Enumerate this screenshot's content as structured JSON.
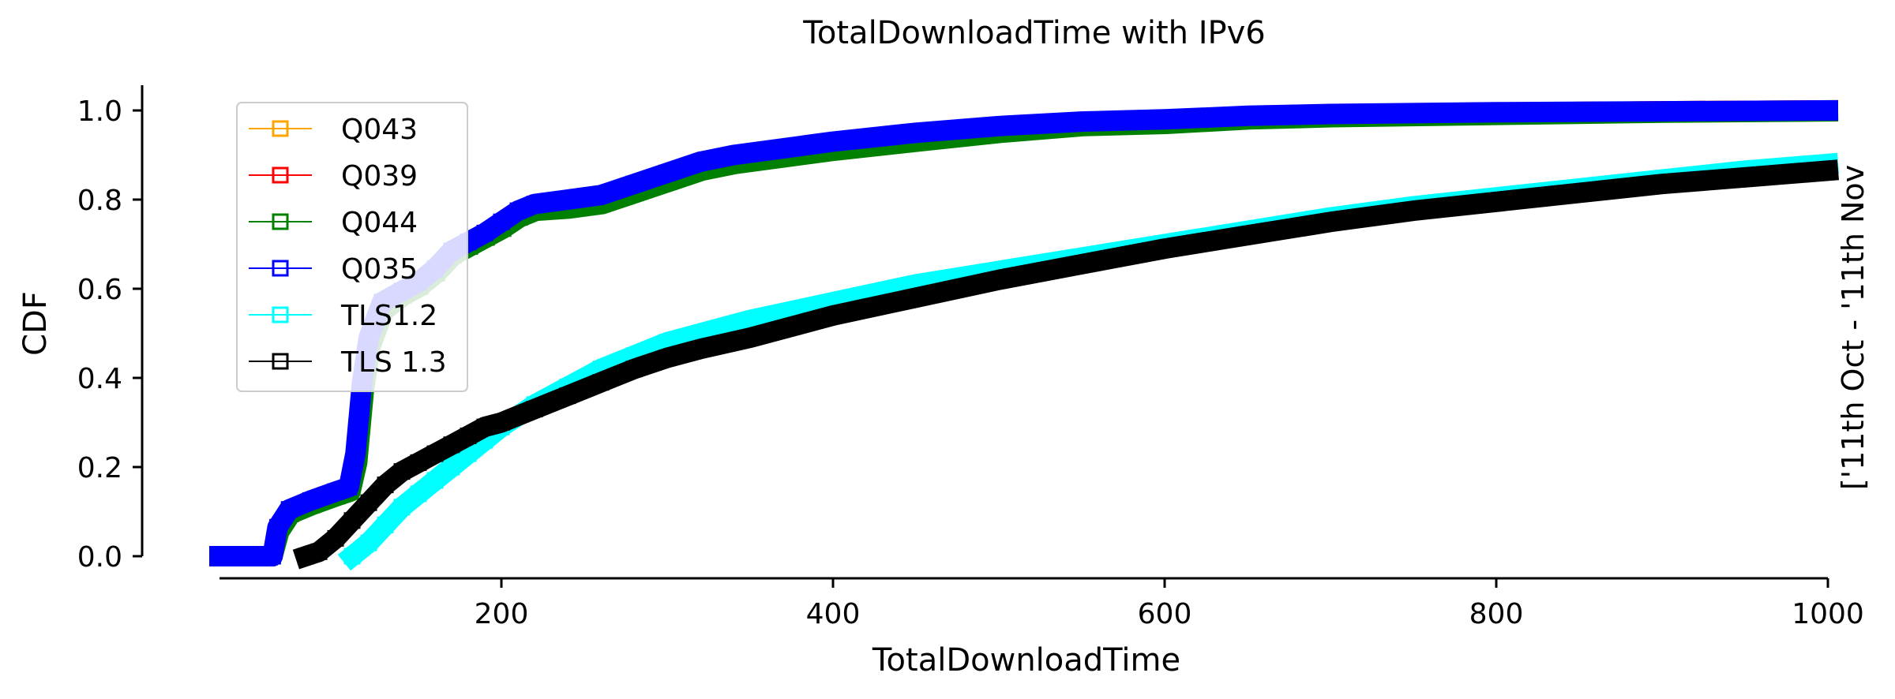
{
  "chart_data": {
    "type": "line",
    "title": "TotalDownloadTime with IPv6",
    "xlabel": "TotalDownloadTime",
    "ylabel": "CDF",
    "side_note": "['11th Oct - '11th Nov",
    "xlim": [
      30,
      1000
    ],
    "ylim": [
      0,
      1.0
    ],
    "x_ticks": [
      200,
      400,
      600,
      800,
      1000
    ],
    "y_ticks": [
      0.0,
      0.2,
      0.4,
      0.6,
      0.8,
      1.0
    ],
    "y_tick_labels": [
      "0.0",
      "0.2",
      "0.4",
      "0.6",
      "0.8",
      "1.0"
    ],
    "grid": false,
    "legend_position": "top-left",
    "series": [
      {
        "name": "Q043",
        "color": "#ffa500",
        "x": [
          30,
          50,
          62,
          65,
          72,
          85,
          100,
          108,
          112,
          116,
          120,
          128,
          140,
          150,
          160,
          170,
          180,
          190,
          200,
          210,
          220,
          240,
          260,
          280,
          300,
          320,
          340,
          360,
          380,
          400,
          450,
          500,
          550,
          600,
          650,
          700,
          800,
          900,
          1000
        ],
        "y": [
          0.0,
          0.0,
          0.0,
          0.06,
          0.1,
          0.12,
          0.14,
          0.15,
          0.22,
          0.38,
          0.48,
          0.56,
          0.59,
          0.61,
          0.64,
          0.68,
          0.7,
          0.72,
          0.745,
          0.77,
          0.785,
          0.79,
          0.8,
          0.825,
          0.85,
          0.875,
          0.89,
          0.9,
          0.91,
          0.92,
          0.94,
          0.96,
          0.97,
          0.975,
          0.985,
          0.99,
          0.995,
          0.998,
          1.0
        ]
      },
      {
        "name": "Q039",
        "color": "#ff0000",
        "x": [
          30,
          50,
          62,
          65,
          72,
          85,
          100,
          108,
          112,
          116,
          120,
          128,
          140,
          150,
          160,
          170,
          180,
          190,
          200,
          210,
          220,
          240,
          260,
          280,
          300,
          320,
          340,
          360,
          380,
          400,
          450,
          500,
          550,
          600,
          650,
          700,
          800,
          900,
          1000
        ],
        "y": [
          0.0,
          0.0,
          0.0,
          0.06,
          0.1,
          0.12,
          0.14,
          0.15,
          0.22,
          0.38,
          0.48,
          0.56,
          0.59,
          0.61,
          0.64,
          0.68,
          0.7,
          0.72,
          0.745,
          0.77,
          0.785,
          0.79,
          0.8,
          0.825,
          0.85,
          0.875,
          0.89,
          0.9,
          0.91,
          0.92,
          0.94,
          0.96,
          0.97,
          0.975,
          0.985,
          0.99,
          0.995,
          0.998,
          1.0
        ]
      },
      {
        "name": "Q044",
        "color": "#008000",
        "x": [
          30,
          50,
          62,
          66,
          73,
          86,
          101,
          109,
          113,
          117,
          121,
          129,
          141,
          151,
          161,
          171,
          181,
          191,
          201,
          211,
          221,
          241,
          261,
          281,
          301,
          321,
          341,
          361,
          381,
          401,
          451,
          501,
          551,
          601,
          651,
          701,
          801,
          901,
          1000
        ],
        "y": [
          0.0,
          0.0,
          0.0,
          0.055,
          0.095,
          0.115,
          0.135,
          0.145,
          0.21,
          0.37,
          0.47,
          0.55,
          0.585,
          0.605,
          0.635,
          0.675,
          0.695,
          0.715,
          0.735,
          0.76,
          0.775,
          0.78,
          0.79,
          0.815,
          0.84,
          0.865,
          0.88,
          0.89,
          0.9,
          0.91,
          0.93,
          0.95,
          0.965,
          0.97,
          0.98,
          0.985,
          0.99,
          0.995,
          0.998
        ]
      },
      {
        "name": "Q035",
        "color": "#0000ff",
        "x": [
          30,
          50,
          62,
          65,
          72,
          85,
          100,
          108,
          112,
          116,
          120,
          128,
          140,
          150,
          160,
          170,
          180,
          190,
          200,
          210,
          220,
          240,
          260,
          280,
          300,
          320,
          340,
          360,
          380,
          400,
          450,
          500,
          550,
          600,
          650,
          700,
          800,
          900,
          1000
        ],
        "y": [
          0.0,
          0.0,
          0.0,
          0.065,
          0.105,
          0.125,
          0.145,
          0.155,
          0.23,
          0.39,
          0.49,
          0.57,
          0.595,
          0.615,
          0.645,
          0.685,
          0.705,
          0.725,
          0.75,
          0.775,
          0.79,
          0.8,
          0.81,
          0.835,
          0.86,
          0.885,
          0.9,
          0.91,
          0.92,
          0.93,
          0.95,
          0.965,
          0.975,
          0.98,
          0.988,
          0.992,
          0.996,
          0.998,
          1.0
        ]
      },
      {
        "name": "TLS1.2",
        "color": "#00ffff",
        "x": [
          110,
          120,
          130,
          140,
          150,
          160,
          170,
          180,
          190,
          200,
          220,
          240,
          260,
          280,
          300,
          320,
          350,
          400,
          450,
          500,
          550,
          600,
          650,
          700,
          750,
          800,
          850,
          900,
          950,
          1000
        ],
        "y": [
          0.0,
          0.03,
          0.07,
          0.11,
          0.14,
          0.17,
          0.2,
          0.23,
          0.26,
          0.29,
          0.34,
          0.38,
          0.42,
          0.45,
          0.48,
          0.5,
          0.53,
          0.57,
          0.61,
          0.64,
          0.67,
          0.7,
          0.73,
          0.76,
          0.785,
          0.805,
          0.825,
          0.845,
          0.865,
          0.88
        ]
      },
      {
        "name": "TLS 1.3",
        "color": "#000000",
        "x": [
          82,
          90,
          100,
          110,
          120,
          130,
          140,
          150,
          160,
          170,
          180,
          190,
          200,
          220,
          240,
          260,
          280,
          300,
          320,
          350,
          400,
          450,
          500,
          550,
          600,
          650,
          700,
          750,
          800,
          850,
          900,
          950,
          1000
        ],
        "y": [
          0.0,
          0.01,
          0.04,
          0.08,
          0.12,
          0.16,
          0.19,
          0.21,
          0.23,
          0.25,
          0.27,
          0.29,
          0.3,
          0.33,
          0.36,
          0.39,
          0.42,
          0.445,
          0.465,
          0.49,
          0.54,
          0.58,
          0.62,
          0.655,
          0.69,
          0.72,
          0.75,
          0.775,
          0.795,
          0.815,
          0.835,
          0.85,
          0.865
        ]
      }
    ]
  }
}
